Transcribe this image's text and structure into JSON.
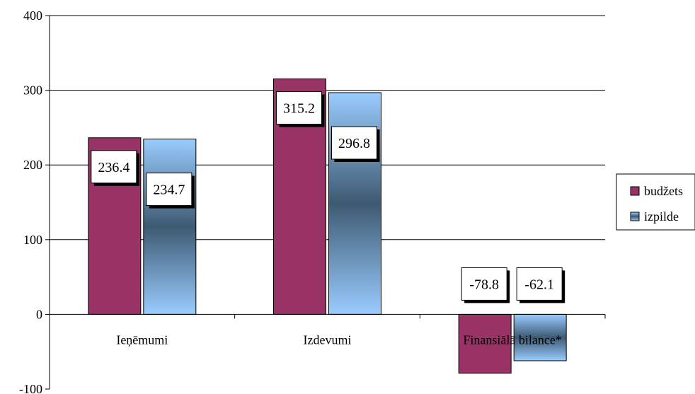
{
  "chart_data": {
    "type": "bar",
    "categories": [
      "Ieņēmumi",
      "Izdevumi",
      "Finansiālā bilance*"
    ],
    "series": [
      {
        "name": "budžets",
        "values": [
          236.4,
          315.2,
          -78.8
        ],
        "color": "#993366"
      },
      {
        "name": "izpilde",
        "values": [
          234.7,
          296.8,
          -62.1
        ],
        "color": "#99ccff"
      }
    ],
    "data_labels": [
      [
        "236.4",
        "315.2",
        "-78.8"
      ],
      [
        "234.7",
        "296.8",
        "-62.1"
      ]
    ],
    "ylim": [
      -100,
      400
    ],
    "yticks": [
      -100,
      0,
      100,
      200,
      300,
      400
    ],
    "ytick_labels": [
      "-100",
      "0",
      "100",
      "200",
      "300",
      "400"
    ],
    "grid": true,
    "legend_position": "right",
    "colors": {
      "gradient_dark": "#3e5a72",
      "gridline": "#000000"
    }
  }
}
